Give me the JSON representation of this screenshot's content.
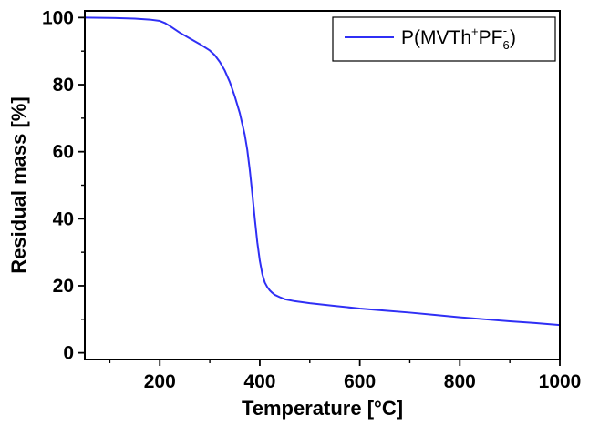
{
  "chart_data": {
    "type": "line",
    "title": "",
    "xlabel": "Temperature [°C]",
    "ylabel": "Residual mass [%]",
    "xlim": [
      50,
      1000
    ],
    "ylim": [
      -2,
      102
    ],
    "x_ticks": [
      200,
      400,
      600,
      800,
      1000
    ],
    "y_ticks": [
      0,
      20,
      40,
      60,
      80,
      100
    ],
    "x_minor_ticks": [
      100,
      300,
      500,
      700,
      900
    ],
    "y_minor_ticks": [
      10,
      30,
      50,
      70,
      90
    ],
    "grid": false,
    "legend_position": "top-right",
    "legend": {
      "base": "P(MVTh",
      "superscript": "+",
      "mid": "PF",
      "subscript": "6",
      "superscript2": "-",
      "tail": ")"
    },
    "series": [
      {
        "name": "P(MVTh+PF6-)",
        "color": "#2f2ff5",
        "x": [
          50,
          100,
          150,
          180,
          200,
          210,
          220,
          240,
          260,
          280,
          300,
          310,
          320,
          330,
          340,
          350,
          360,
          370,
          375,
          380,
          385,
          390,
          395,
          400,
          405,
          410,
          415,
          420,
          425,
          430,
          440,
          450,
          470,
          500,
          550,
          600,
          650,
          700,
          750,
          800,
          850,
          900,
          950,
          1000
        ],
        "y": [
          100,
          99.9,
          99.7,
          99.4,
          99,
          98.4,
          97.5,
          95.5,
          93.8,
          92.1,
          90.2,
          88.8,
          86.8,
          84.2,
          80.8,
          76.5,
          71.5,
          65.0,
          60.5,
          54.5,
          47.5,
          40.0,
          33.0,
          27.5,
          23.5,
          21.0,
          19.6,
          18.6,
          17.9,
          17.3,
          16.6,
          16.0,
          15.4,
          14.8,
          14.0,
          13.2,
          12.6,
          12.0,
          11.3,
          10.6,
          10.0,
          9.4,
          8.9,
          8.3
        ]
      }
    ]
  }
}
